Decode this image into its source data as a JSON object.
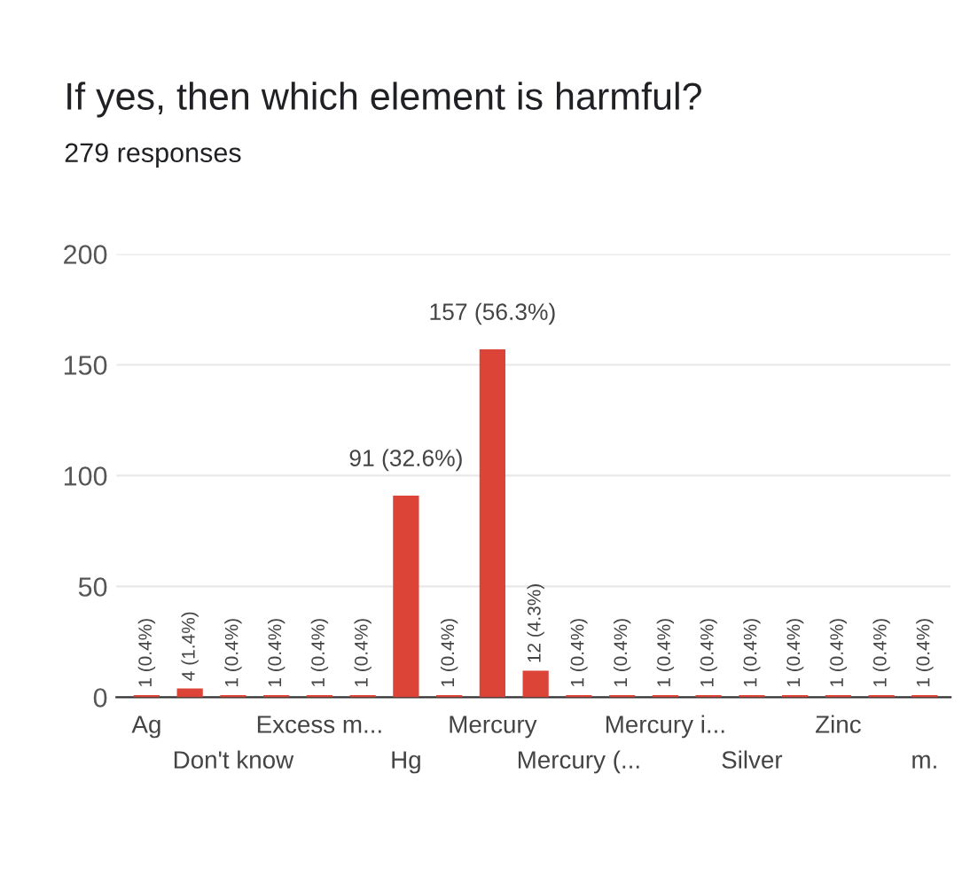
{
  "chart_data": {
    "type": "bar",
    "title": "If yes, then which element is harmful?",
    "subtitle": "279 responses",
    "categories": [
      "Ag",
      null,
      "Don't know",
      null,
      "Excess m...",
      null,
      "Hg",
      null,
      "Mercury",
      null,
      "Mercury (...",
      null,
      "Mercury i...",
      null,
      "Silver",
      null,
      "Zinc",
      null,
      "m."
    ],
    "values": [
      1,
      4,
      1,
      1,
      1,
      1,
      91,
      1,
      157,
      12,
      1,
      1,
      1,
      1,
      1,
      1,
      1,
      1,
      1
    ],
    "value_labels": [
      "1 (0.4%)",
      "4 (1.4%)",
      "1 (0.4%)",
      "1 (0.4%)",
      "1 (0.4%)",
      "1 (0.4%)",
      "91 (32.6%)",
      "1 (0.4%)",
      "157 (56.3%)",
      "12 (4.3%)",
      "1 (0.4%)",
      "1 (0.4%)",
      "1 (0.4%)",
      "1 (0.4%)",
      "1 (0.4%)",
      "1 (0.4%)",
      "1 (0.4%)",
      "1 (0.4%)",
      "1 (0.4%)"
    ],
    "color": "#db4437",
    "ylim": [
      0,
      200
    ],
    "yticks": [
      0,
      50,
      100,
      150,
      200
    ],
    "grid": "y",
    "legend": false
  }
}
